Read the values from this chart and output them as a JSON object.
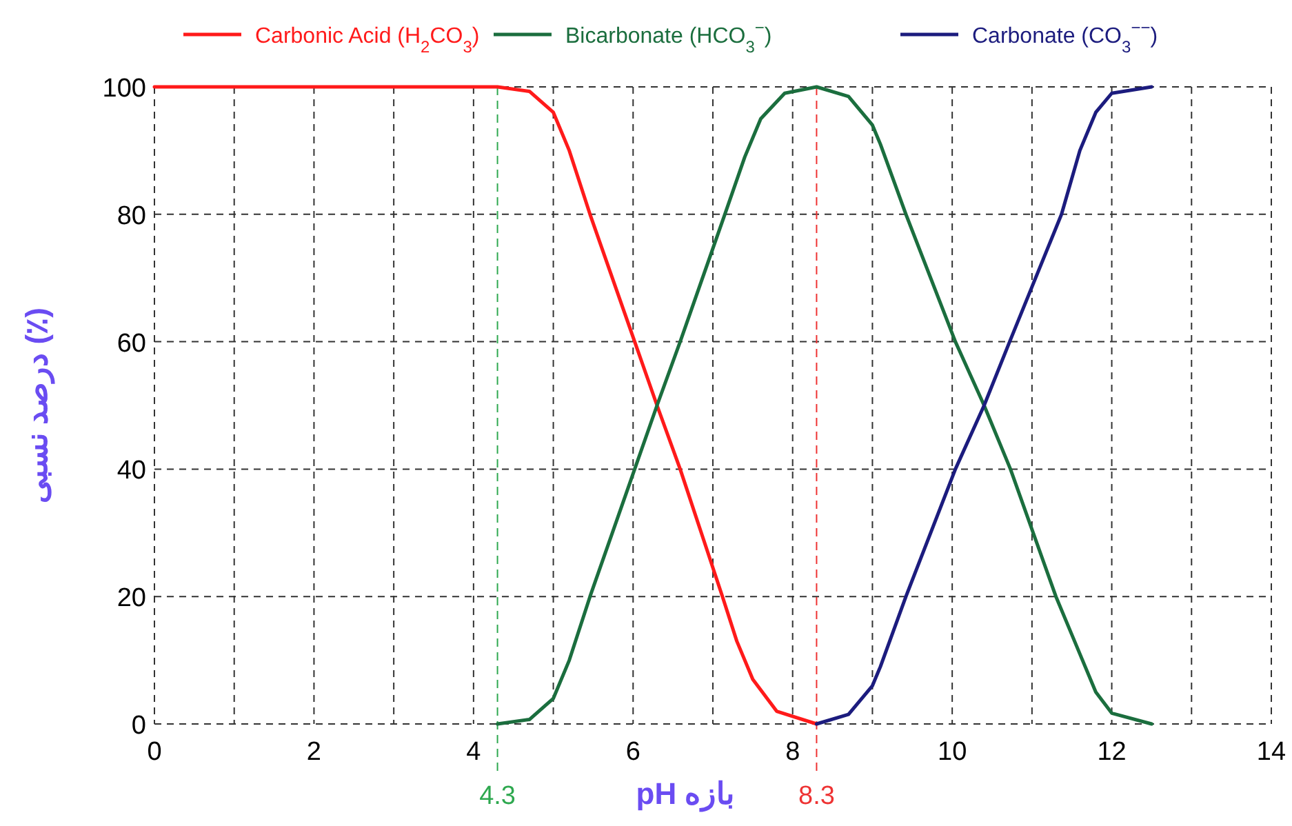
{
  "chart_data": {
    "type": "line",
    "xlabel": "بازه pH",
    "ylabel": "درصد نسبی (٪)",
    "xlim": [
      0,
      14
    ],
    "ylim": [
      0,
      100
    ],
    "xticks": [
      0,
      {
        "value": 1,
        "label": null
      },
      2,
      {
        "value": 3,
        "label": null
      },
      4,
      {
        "value": 5,
        "label": null
      },
      6,
      {
        "value": 7,
        "label": null
      },
      8,
      {
        "value": 9,
        "label": null
      },
      10,
      {
        "value": 11,
        "label": null
      },
      12,
      {
        "value": 13,
        "label": null
      },
      14
    ],
    "yticks": [
      0,
      20,
      40,
      60,
      80,
      100
    ],
    "grid": true,
    "legend": "top",
    "line_style": "solid",
    "marker": "none",
    "series": [
      {
        "name": "Carbonic Acid (H$_{2}$CO$_{3}$)",
        "color": "#ff1a1a",
        "x": [
          0,
          4.3,
          4.7,
          5.0,
          5.2,
          5.46,
          6.02,
          6.3,
          6.59,
          7.12,
          7.3,
          7.5,
          7.8,
          8.3
        ],
        "values": [
          100,
          100,
          99.3,
          96,
          90,
          80,
          60,
          50,
          40,
          20,
          13,
          7,
          2,
          0
        ]
      },
      {
        "name": "Bicarbonate (HCO$_{3}$$^{−}$)",
        "color": "#1b6e3e",
        "x": [
          4.3,
          4.7,
          5.0,
          5.2,
          5.46,
          6.02,
          6.3,
          6.59,
          7.15,
          7.4,
          7.6,
          7.9,
          8.3,
          8.7,
          9.0,
          9.1,
          9.42,
          10.04,
          10.4,
          10.73,
          11.3,
          11.5,
          11.8,
          12.0,
          12.5
        ],
        "values": [
          0,
          0.7,
          4,
          10,
          20,
          40,
          50,
          60,
          80,
          89,
          95,
          99,
          100,
          98.5,
          94,
          91,
          80,
          60,
          50,
          40,
          20,
          14,
          5,
          1.7,
          0
        ]
      },
      {
        "name": "Carbonate (CO$_{3}$$^{−−}$)",
        "color": "#1c1c7e",
        "x": [
          8.3,
          8.7,
          9.0,
          9.1,
          9.42,
          10.04,
          10.4,
          10.72,
          11.37,
          11.6,
          11.8,
          12.0,
          12.5
        ],
        "values": [
          0,
          1.5,
          6,
          9,
          20,
          40,
          50,
          60,
          80,
          90,
          96,
          99,
          100
        ]
      }
    ],
    "ref_lines": [
      {
        "axis": "x",
        "value": 4.3,
        "label": "4.3",
        "color": "#2ea84f",
        "line_style": "dashed"
      },
      {
        "axis": "x",
        "value": 8.3,
        "label": "8.3",
        "color": "#ee3333",
        "line_style": "dashed"
      }
    ]
  }
}
